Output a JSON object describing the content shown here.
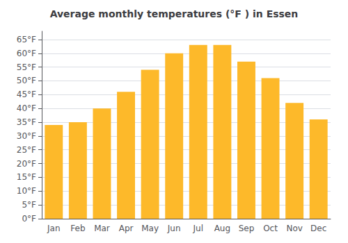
{
  "chart_data": {
    "type": "bar",
    "title": "Average monthly temperatures (°F ) in Essen",
    "categories": [
      "Jan",
      "Feb",
      "Mar",
      "Apr",
      "May",
      "Jun",
      "Jul",
      "Aug",
      "Sep",
      "Oct",
      "Nov",
      "Dec"
    ],
    "values": [
      34,
      35,
      40,
      46,
      54,
      60,
      63,
      63,
      57,
      51,
      42,
      36
    ],
    "color": "#FDB92A",
    "ylim": [
      0,
      68
    ],
    "yticks": [
      {
        "value": 0,
        "label": "0°F"
      },
      {
        "value": 5,
        "label": "5°F"
      },
      {
        "value": 10,
        "label": "10°F"
      },
      {
        "value": 15,
        "label": "15°F"
      },
      {
        "value": 20,
        "label": "20°F"
      },
      {
        "value": 25,
        "label": "25°F"
      },
      {
        "value": 30,
        "label": "30°F"
      },
      {
        "value": 35,
        "label": "35°F"
      },
      {
        "value": 40,
        "label": "40°F"
      },
      {
        "value": 45,
        "label": "45°F"
      },
      {
        "value": 50,
        "label": "50°F"
      },
      {
        "value": 55,
        "label": "55°F"
      },
      {
        "value": 60,
        "label": "60°F"
      },
      {
        "value": 65,
        "label": "65°F"
      }
    ],
    "grid": true
  }
}
